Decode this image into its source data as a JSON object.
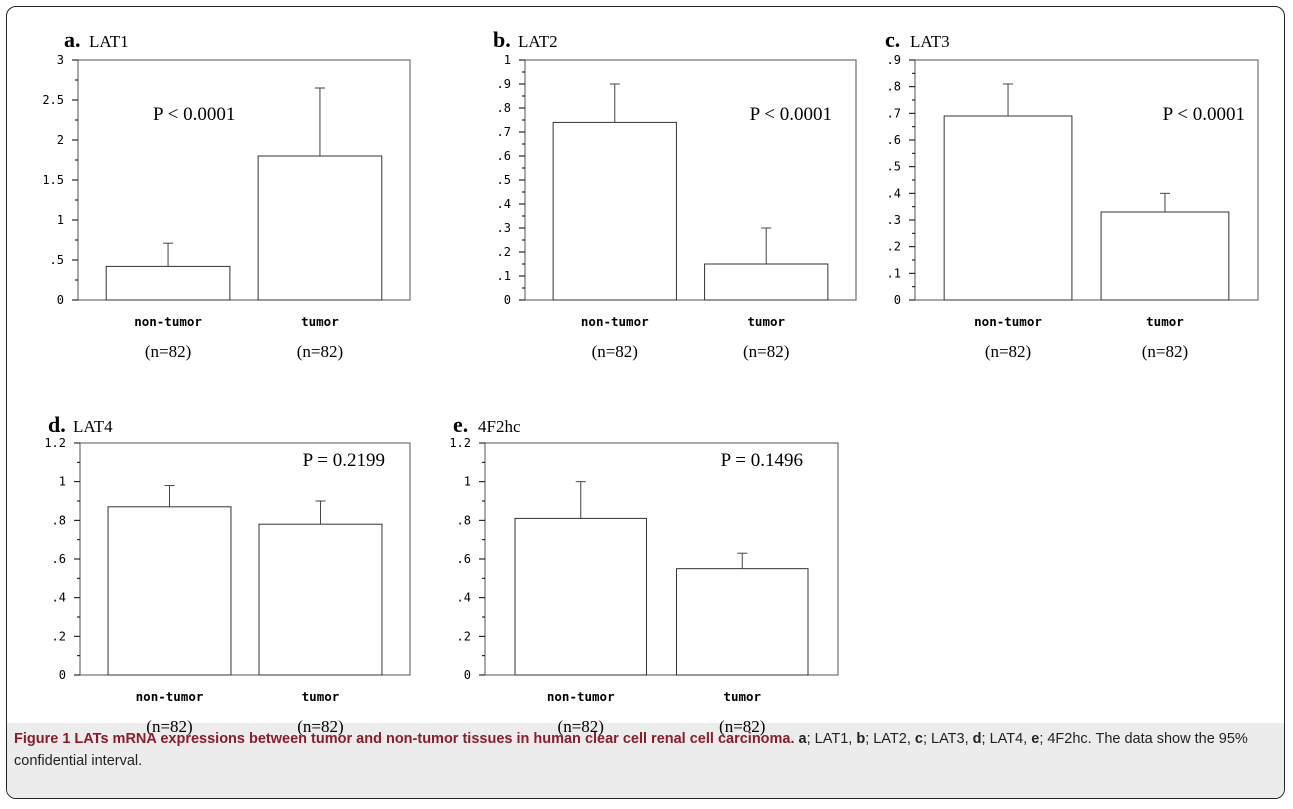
{
  "chart_data": [
    {
      "type": "bar",
      "panel_letter": "a.",
      "title": "LAT1",
      "categories": [
        "non-tumor",
        "tumor"
      ],
      "n_labels": [
        "(n=82)",
        "(n=82)"
      ],
      "values": [
        0.42,
        1.8
      ],
      "error_upper": [
        0.71,
        2.65
      ],
      "ylim": [
        0,
        3
      ],
      "yticks": [
        0,
        0.5,
        1,
        1.5,
        2,
        2.5,
        3
      ],
      "ytick_labels": [
        "0",
        ".5",
        "1",
        "1.5",
        "2",
        "2.5",
        "3"
      ],
      "p_value": "P < 0.0001",
      "p_position": "top-left"
    },
    {
      "type": "bar",
      "panel_letter": "b.",
      "title": "LAT2",
      "categories": [
        "non-tumor",
        "tumor"
      ],
      "n_labels": [
        "(n=82)",
        "(n=82)"
      ],
      "values": [
        0.74,
        0.15
      ],
      "error_upper": [
        0.9,
        0.3
      ],
      "ylim": [
        0,
        1
      ],
      "yticks": [
        0,
        0.1,
        0.2,
        0.3,
        0.4,
        0.5,
        0.6,
        0.7,
        0.8,
        0.9,
        1
      ],
      "ytick_labels": [
        "0",
        ".1",
        ".2",
        ".3",
        ".4",
        ".5",
        ".6",
        ".7",
        ".8",
        ".9",
        "1"
      ],
      "p_value": "P < 0.0001",
      "p_position": "top-right"
    },
    {
      "type": "bar",
      "panel_letter": "c.",
      "title": "LAT3",
      "categories": [
        "non-tumor",
        "tumor"
      ],
      "n_labels": [
        "(n=82)",
        "(n=82)"
      ],
      "values": [
        0.69,
        0.33
      ],
      "error_upper": [
        0.81,
        0.4
      ],
      "ylim": [
        0,
        0.9
      ],
      "yticks": [
        0,
        0.1,
        0.2,
        0.3,
        0.4,
        0.5,
        0.6,
        0.7,
        0.8,
        0.9
      ],
      "ytick_labels": [
        "0",
        ".1",
        ".2",
        ".3",
        ".4",
        ".5",
        ".6",
        ".7",
        ".8",
        ".9"
      ],
      "p_value": "P < 0.0001",
      "p_position": "top-right"
    },
    {
      "type": "bar",
      "panel_letter": "d.",
      "title": "LAT4",
      "categories": [
        "non-tumor",
        "tumor"
      ],
      "n_labels": [
        "(n=82)",
        "(n=82)"
      ],
      "values": [
        0.87,
        0.78
      ],
      "error_upper": [
        0.98,
        0.9
      ],
      "ylim": [
        0,
        1.2
      ],
      "yticks": [
        0,
        0.2,
        0.4,
        0.6,
        0.8,
        1,
        1.2
      ],
      "ytick_labels": [
        "0",
        ".2",
        ".4",
        ".6",
        ".8",
        "1",
        "1.2"
      ],
      "p_value": "P = 0.2199",
      "p_position": "top-right"
    },
    {
      "type": "bar",
      "panel_letter": "e.",
      "title": "4F2hc",
      "categories": [
        "non-tumor",
        "tumor"
      ],
      "n_labels": [
        "(n=82)",
        "(n=82)"
      ],
      "values": [
        0.81,
        0.55
      ],
      "error_upper": [
        1.0,
        0.63
      ],
      "ylim": [
        0,
        1.2
      ],
      "yticks": [
        0,
        0.2,
        0.4,
        0.6,
        0.8,
        1,
        1.2
      ],
      "ytick_labels": [
        "0",
        ".2",
        ".4",
        ".6",
        ".8",
        "1",
        "1.2"
      ],
      "p_value": "P = 0.1496",
      "p_position": "top-right"
    }
  ],
  "caption": {
    "figure_label": "Figure 1 LATs mRNA expressions between tumor and non-tumor tissues in human clear cell renal cell carcinoma.",
    "parts": [
      {
        "letter": "a",
        "text": "; LAT1, "
      },
      {
        "letter": "b",
        "text": "; LAT2, "
      },
      {
        "letter": "c",
        "text": "; LAT3, "
      },
      {
        "letter": "d",
        "text": "; LAT4, "
      },
      {
        "letter": "e",
        "text": "; 4F2hc. The data show the 95% confidential interval."
      }
    ]
  }
}
